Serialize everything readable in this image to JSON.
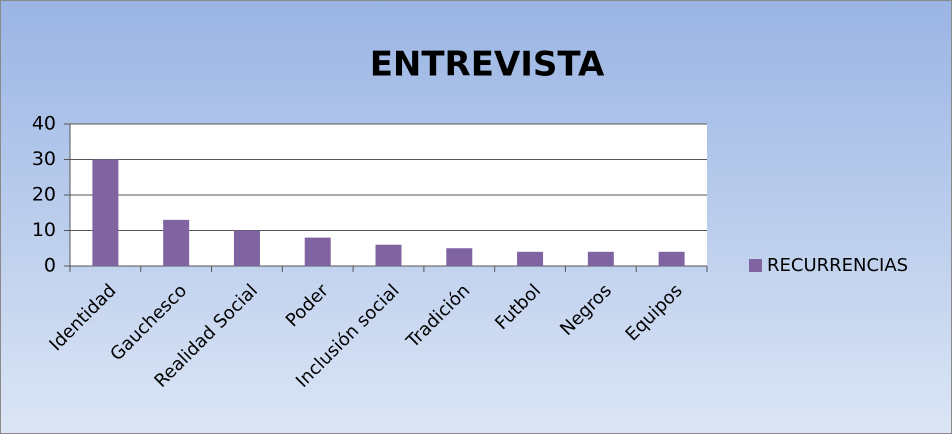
{
  "chart_data": {
    "type": "bar",
    "title": "ENTREVISTA",
    "categories": [
      "Identidad",
      "Gauchesco",
      "Realidad Social",
      "Poder",
      "Inclusión social",
      "Tradición",
      "Futbol",
      "Negros",
      "Equipos"
    ],
    "series": [
      {
        "name": "RECURRENCIAS",
        "color": "#8064a2",
        "values": [
          30,
          13,
          10,
          8,
          6,
          5,
          4,
          4,
          4
        ]
      }
    ],
    "ylim": [
      0,
      40
    ],
    "yticks": [
      0,
      10,
      20,
      30,
      40
    ],
    "grid": true,
    "legend": "right"
  }
}
